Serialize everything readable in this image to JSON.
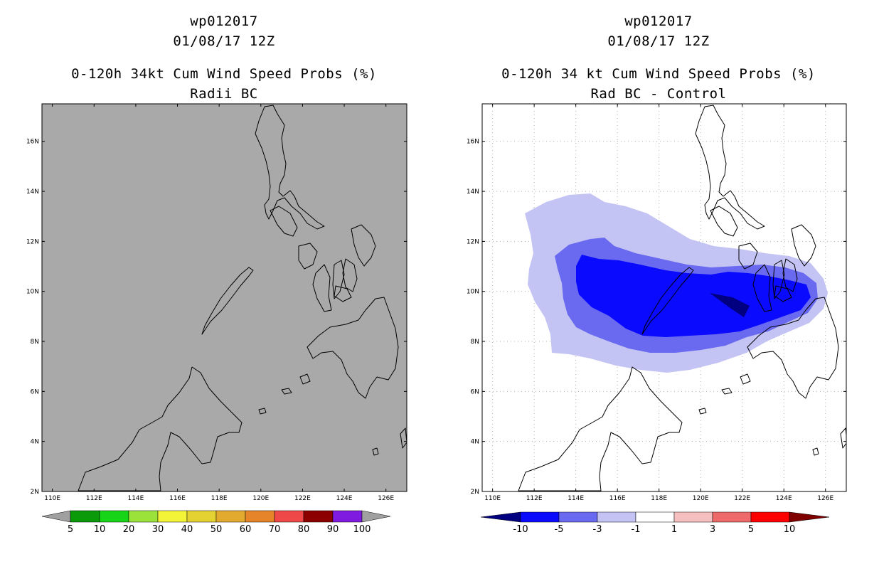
{
  "left_panel": {
    "title_line1": "wp012017",
    "title_line2": "01/08/17 12Z",
    "title_line3": "0-120h 34kt Cum Wind Speed Probs (%)",
    "title_line4": "Radii BC",
    "background": "#a9a9a9",
    "colorbar": {
      "colors": [
        "#0a9a0a",
        "#18d418",
        "#9be23a",
        "#f3f338",
        "#e4d232",
        "#e2aa2e",
        "#e58428",
        "#ee4848",
        "#8c0000",
        "#7f1ae0"
      ],
      "labels": [
        "5",
        "10",
        "20",
        "30",
        "40",
        "50",
        "60",
        "70",
        "80",
        "90",
        "100"
      ],
      "end_color": "#a0a0a0"
    }
  },
  "right_panel": {
    "title_line1": "wp012017",
    "title_line2": "01/08/17 12Z",
    "title_line3": "0-120h 34 kt Cum Wind Speed Probs (%)",
    "title_line4": "Rad BC - Control",
    "background": "#ffffff",
    "colorbar": {
      "colors": [
        "#0a0aff",
        "#6a6af0",
        "#c4c4f4",
        "#ffffff",
        "#f6c0c0",
        "#ee6a6a",
        "#ff0000"
      ],
      "labels": [
        "-10",
        "-5",
        "-3",
        "-1",
        "1",
        "3",
        "5",
        "10"
      ],
      "left_end_color": "#000080",
      "right_end_color": "#800000"
    }
  },
  "axes": {
    "lon_labels": [
      "110E",
      "112E",
      "114E",
      "116E",
      "118E",
      "120E",
      "122E",
      "124E",
      "126E"
    ],
    "lon_values": [
      110,
      112,
      114,
      116,
      118,
      120,
      122,
      124,
      126
    ],
    "lat_labels": [
      "2N",
      "4N",
      "6N",
      "8N",
      "10N",
      "12N",
      "14N",
      "16N"
    ],
    "lat_values": [
      2,
      4,
      6,
      8,
      10,
      12,
      14,
      16
    ],
    "lon_range": [
      109.5,
      127
    ],
    "lat_range": [
      2,
      17.5
    ]
  },
  "difference_field": {
    "units": "%",
    "contours": [
      {
        "level": "-1",
        "color": "#c4c4f4"
      },
      {
        "level": "-3",
        "color": "#6a6af0"
      },
      {
        "level": "-5",
        "color": "#0a0aff"
      },
      {
        "level": "-10",
        "color": "#000080"
      }
    ]
  }
}
